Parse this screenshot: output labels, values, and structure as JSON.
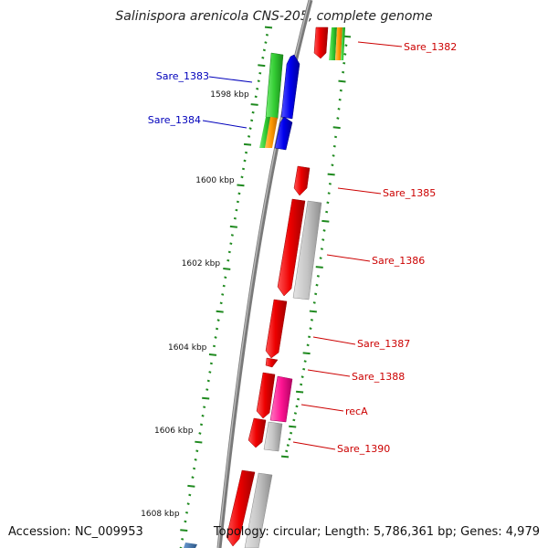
{
  "title": "Salinispora arenicola CNS-205, complete genome",
  "accession": "Accession: NC_009953",
  "topology": "Topology: circular; Length: 5,786,361 bp; Genes: 4,979",
  "colors": {
    "backbone": "#7a7a7a",
    "tick": "#1f8a1f",
    "forward_label": "#cc0000",
    "reverse_label": "#0000bb",
    "cds_red": "#e00000",
    "cds_grey": "#bdbdbd",
    "cds_green": "#33cc33",
    "cds_blue": "#0000ee",
    "cds_orange": "#ff9900",
    "cds_pink": "#ff1493",
    "cds_steel": "#3a6ea5"
  },
  "kbp_labels": [
    {
      "label": "1598 kbp",
      "kbp": 1598
    },
    {
      "label": "1600 kbp",
      "kbp": 1600
    },
    {
      "label": "1602 kbp",
      "kbp": 1602
    },
    {
      "label": "1604 kbp",
      "kbp": 1604
    },
    {
      "label": "1606 kbp",
      "kbp": 1606
    },
    {
      "label": "1608 kbp",
      "kbp": 1608
    }
  ],
  "genes": [
    {
      "name": "Sare_1382",
      "strand": "forward"
    },
    {
      "name": "Sare_1383",
      "strand": "reverse"
    },
    {
      "name": "Sare_1384",
      "strand": "reverse"
    },
    {
      "name": "Sare_1385",
      "strand": "forward"
    },
    {
      "name": "Sare_1386",
      "strand": "forward"
    },
    {
      "name": "Sare_1387",
      "strand": "forward"
    },
    {
      "name": "Sare_1388",
      "strand": "forward"
    },
    {
      "name": "recA",
      "strand": "forward"
    },
    {
      "name": "Sare_1390",
      "strand": "forward"
    }
  ]
}
